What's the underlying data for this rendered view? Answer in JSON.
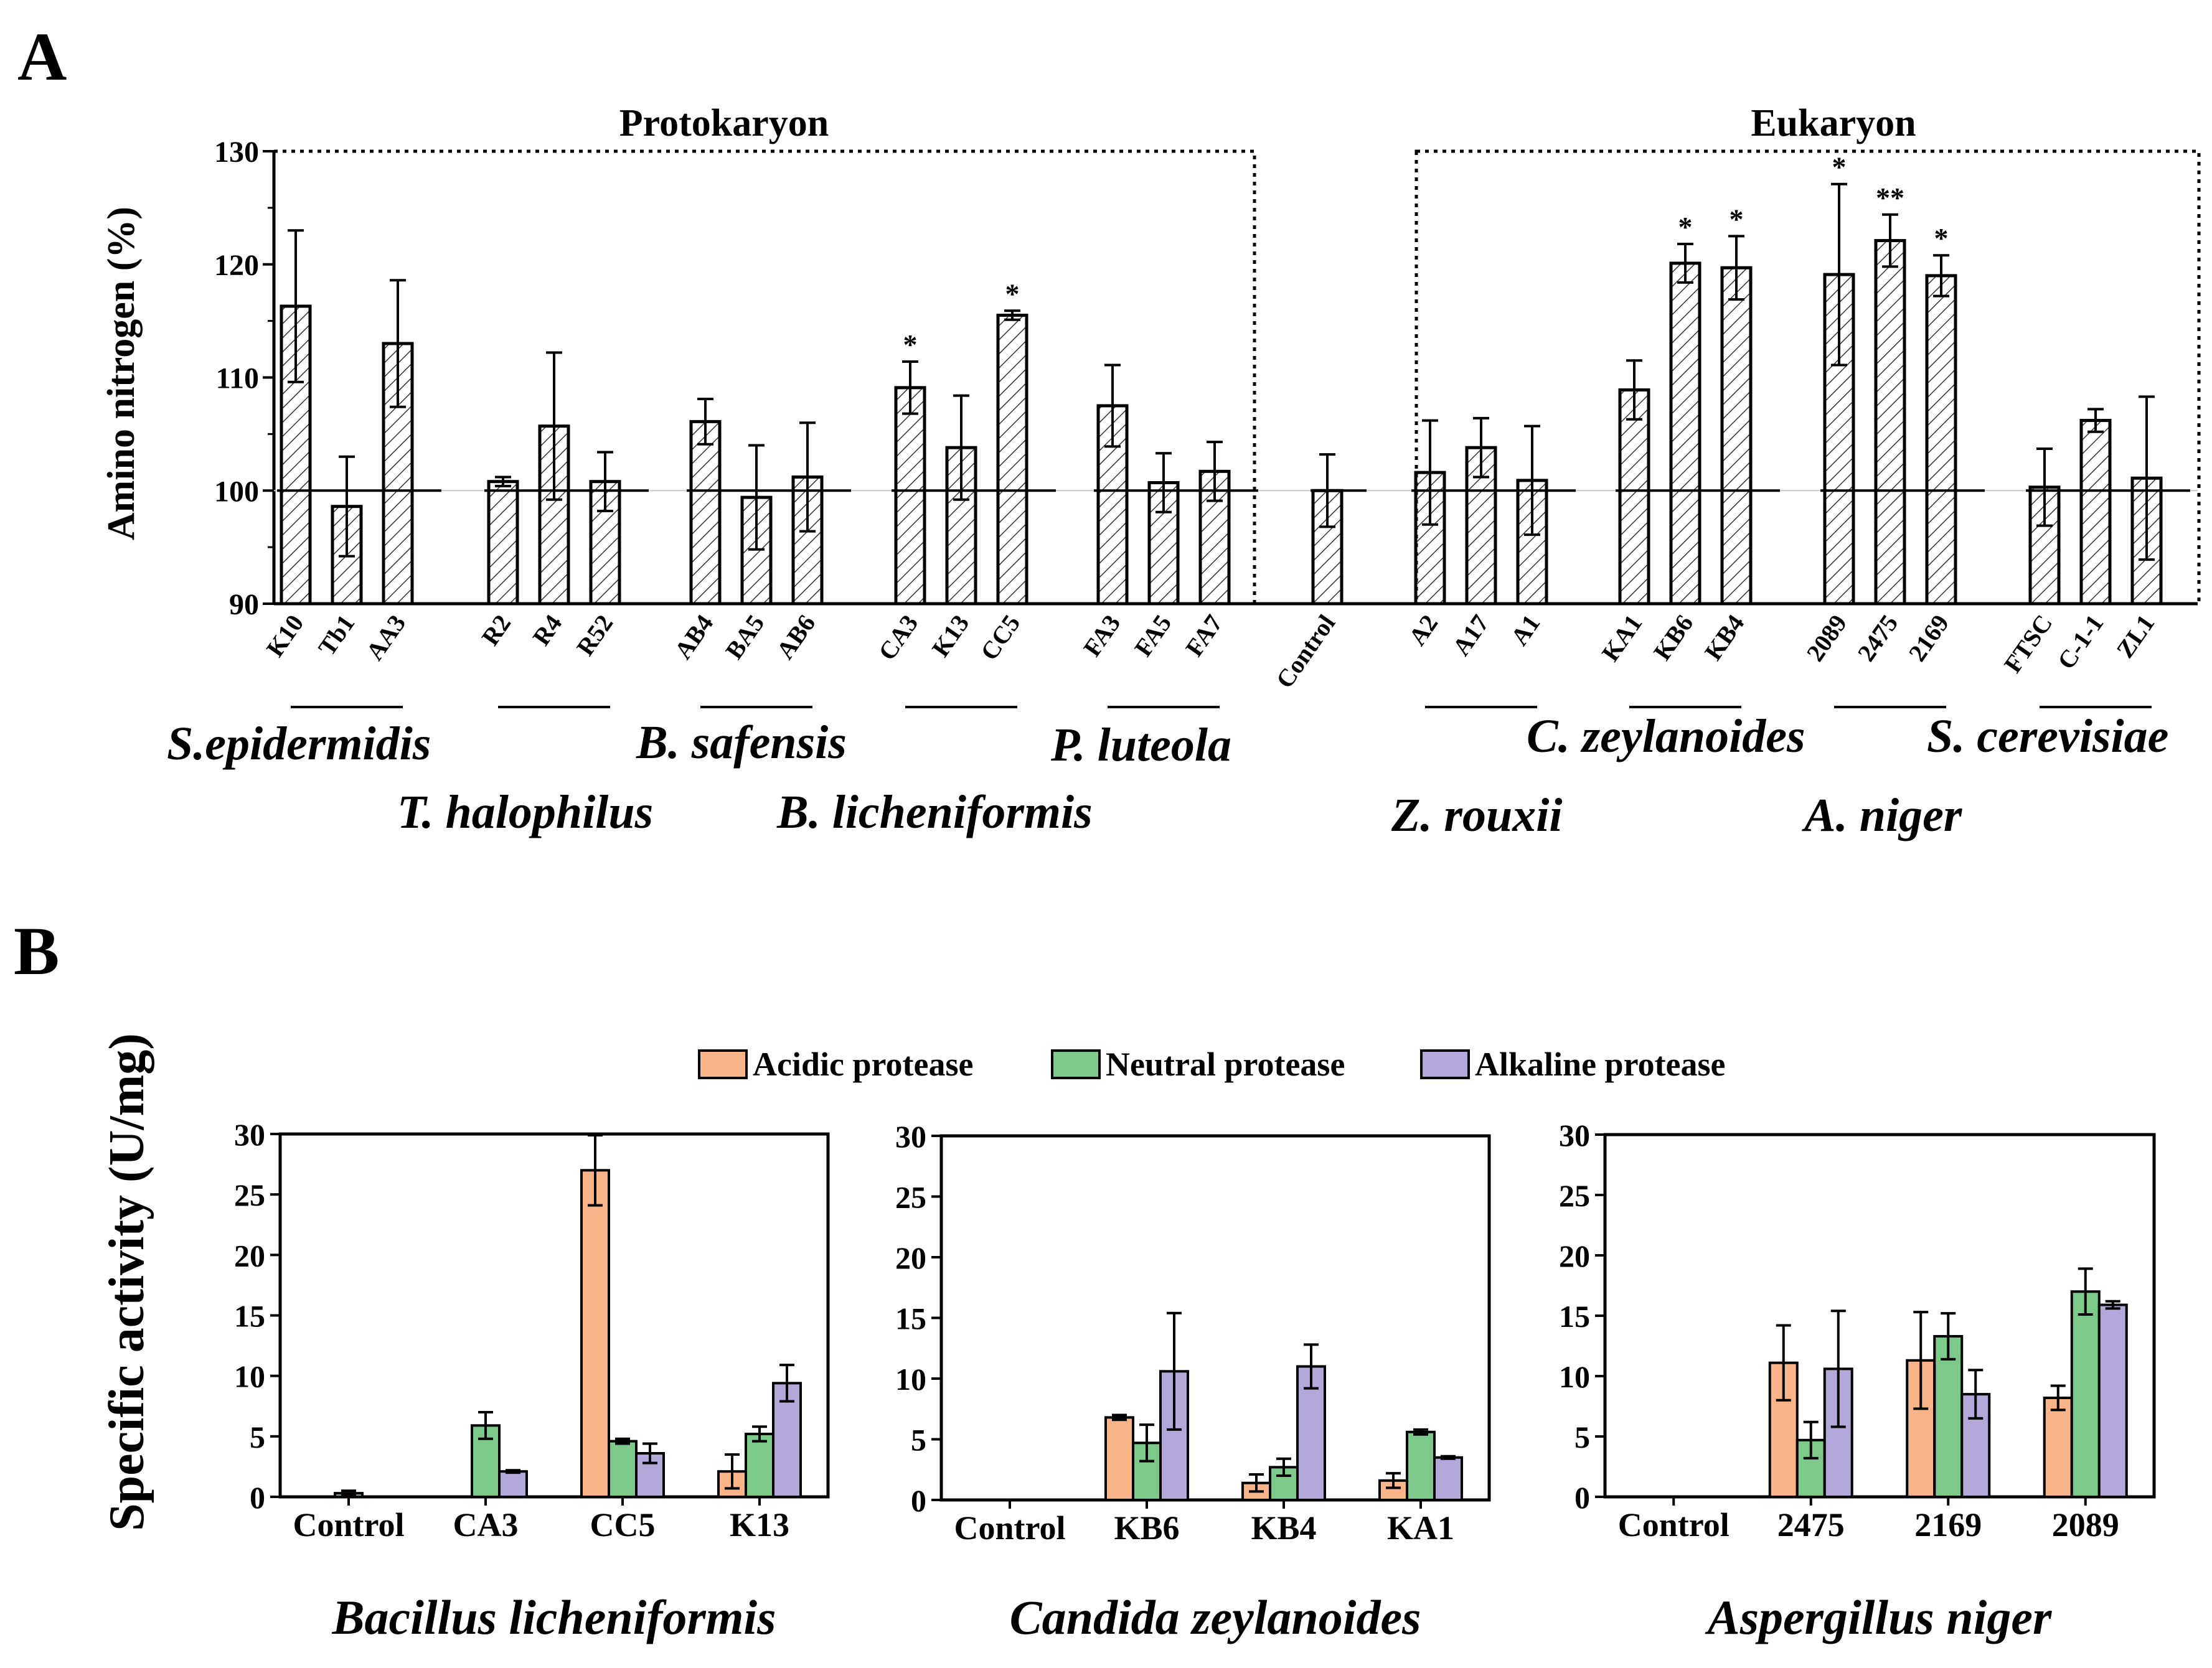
{
  "colors": {
    "acidic": "#F9B48A",
    "neutral": "#7CC98A",
    "alkaline": "#B3A8D9",
    "panelA_bar": "#FFFFFF",
    "hatch": "#333333",
    "axis": "#000000"
  },
  "chart_data": [
    {
      "type": "bar",
      "panel_label": "A",
      "title_protokaryon": "Protokaryon",
      "title_eukaryon": "Eukaryon",
      "ylabel": "Amino nitrogen (%)",
      "ylim": [
        90,
        130
      ],
      "yticks": [
        "90",
        "100",
        "110",
        "120",
        "130"
      ],
      "reference_value": 100,
      "groups": [
        {
          "species": "S.epidermidis",
          "strains": [
            {
              "name": "K10",
              "value": 116.3,
              "err": 6.7,
              "sig": ""
            },
            {
              "name": "Tb1",
              "value": 98.6,
              "err": 4.4,
              "sig": ""
            },
            {
              "name": "AA3",
              "value": 113.0,
              "err": 5.6,
              "sig": ""
            }
          ]
        },
        {
          "species": "T. halophilus",
          "strains": [
            {
              "name": "R2",
              "value": 100.8,
              "err": 0.4,
              "sig": ""
            },
            {
              "name": "R4",
              "value": 105.7,
              "err": 6.5,
              "sig": ""
            },
            {
              "name": "R52",
              "value": 100.8,
              "err": 2.6,
              "sig": ""
            }
          ]
        },
        {
          "species": "B. safensis",
          "strains": [
            {
              "name": "AB4",
              "value": 106.1,
              "err": 2.0,
              "sig": ""
            },
            {
              "name": "BA5",
              "value": 99.4,
              "err": 4.6,
              "sig": ""
            },
            {
              "name": "AB6",
              "value": 101.2,
              "err": 4.8,
              "sig": ""
            }
          ]
        },
        {
          "species": "B. licheniformis",
          "strains": [
            {
              "name": "CA3",
              "value": 109.1,
              "err": 2.3,
              "sig": "*"
            },
            {
              "name": "K13",
              "value": 103.8,
              "err": 4.6,
              "sig": ""
            },
            {
              "name": "CC5",
              "value": 115.5,
              "err": 0.4,
              "sig": "*"
            }
          ]
        },
        {
          "species": "P. luteola",
          "strains": [
            {
              "name": "FA3",
              "value": 107.5,
              "err": 3.6,
              "sig": ""
            },
            {
              "name": "FA5",
              "value": 100.7,
              "err": 2.6,
              "sig": ""
            },
            {
              "name": "FA7",
              "value": 101.7,
              "err": 2.6,
              "sig": ""
            }
          ]
        },
        {
          "species": "",
          "strains": [
            {
              "name": "Control",
              "value": 100.0,
              "err": 3.2,
              "sig": ""
            }
          ]
        },
        {
          "species": "Z. rouxii",
          "strains": [
            {
              "name": "A2",
              "value": 101.6,
              "err": 4.6,
              "sig": ""
            },
            {
              "name": "A17",
              "value": 103.8,
              "err": 2.6,
              "sig": ""
            },
            {
              "name": "A1",
              "value": 100.9,
              "err": 4.8,
              "sig": ""
            }
          ]
        },
        {
          "species": "C. zeylanoides",
          "strains": [
            {
              "name": "KA1",
              "value": 108.9,
              "err": 2.6,
              "sig": ""
            },
            {
              "name": "KB6",
              "value": 120.1,
              "err": 1.7,
              "sig": "*"
            },
            {
              "name": "KB4",
              "value": 119.7,
              "err": 2.8,
              "sig": "*"
            }
          ]
        },
        {
          "species": "A. niger",
          "strains": [
            {
              "name": "2089",
              "value": 119.1,
              "err": 8.0,
              "sig": "*"
            },
            {
              "name": "2475",
              "value": 122.1,
              "err": 2.3,
              "sig": "**"
            },
            {
              "name": "2169",
              "value": 119.0,
              "err": 1.8,
              "sig": "*"
            }
          ]
        },
        {
          "species": "S. cerevisiae",
          "strains": [
            {
              "name": "FTSC",
              "value": 100.3,
              "err": 3.4,
              "sig": ""
            },
            {
              "name": "C-1-1",
              "value": 106.2,
              "err": 1.0,
              "sig": ""
            },
            {
              "name": "ZL1",
              "value": 101.1,
              "err": 7.2,
              "sig": ""
            }
          ]
        }
      ]
    },
    {
      "type": "bar",
      "panel_label": "B",
      "ylabel": "Specific activity (U/mg)",
      "ylim": [
        0,
        30
      ],
      "yticks": [
        "0",
        "5",
        "10",
        "15",
        "20",
        "25",
        "30"
      ],
      "legend": [
        "Acidic protease",
        "Neutral protease",
        "Alkaline protease"
      ],
      "panels": [
        {
          "title": "Bacillus licheniformis",
          "categories": [
            "Control",
            "CA3",
            "CC5",
            "K13"
          ],
          "series": [
            {
              "name": "Acidic protease",
              "values": [
                0,
                0,
                27.0,
                2.1
              ],
              "err": [
                0,
                0,
                2.9,
                1.4
              ]
            },
            {
              "name": "Neutral protease",
              "values": [
                0.3,
                5.9,
                4.6,
                5.2
              ],
              "err": [
                0.2,
                1.1,
                0.2,
                0.6
              ]
            },
            {
              "name": "Alkaline protease",
              "values": [
                0,
                2.1,
                3.6,
                9.4
              ],
              "err": [
                0,
                0.1,
                0.8,
                1.5
              ]
            }
          ]
        },
        {
          "title": "Candida zeylanoides",
          "categories": [
            "Control",
            "KB6",
            "KB4",
            "KA1"
          ],
          "series": [
            {
              "name": "Acidic protease",
              "values": [
                0,
                6.8,
                1.4,
                1.6
              ],
              "err": [
                0,
                0.2,
                0.7,
                0.6
              ]
            },
            {
              "name": "Neutral protease",
              "values": [
                0,
                4.7,
                2.7,
                5.6
              ],
              "err": [
                0,
                1.5,
                0.7,
                0.2
              ]
            },
            {
              "name": "Alkaline protease",
              "values": [
                0,
                10.6,
                11.0,
                3.5
              ],
              "err": [
                0,
                4.8,
                1.8,
                0.1
              ]
            }
          ]
        },
        {
          "title": "Aspergillus niger",
          "categories": [
            "Control",
            "2475",
            "2169",
            "2089"
          ],
          "series": [
            {
              "name": "Acidic protease",
              "values": [
                0,
                11.1,
                11.3,
                8.2
              ],
              "err": [
                0,
                3.1,
                4.0,
                1.0
              ]
            },
            {
              "name": "Neutral protease",
              "values": [
                0,
                4.7,
                13.3,
                17.0
              ],
              "err": [
                0,
                1.5,
                1.9,
                1.9
              ]
            },
            {
              "name": "Alkaline protease",
              "values": [
                0,
                10.6,
                8.5,
                15.9
              ],
              "err": [
                0,
                4.8,
                2.0,
                0.3
              ]
            }
          ]
        }
      ]
    }
  ]
}
